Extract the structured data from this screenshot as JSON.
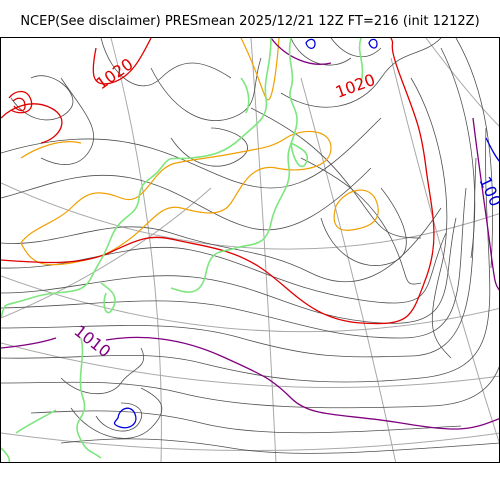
{
  "title": "NCEP(See disclaimer) PRESmean 2025/12/21 12Z FT=216 (init 1212Z)",
  "colors": {
    "isobar_thin": "#505050",
    "isobar_1020": "#e00000",
    "isobar_1010": "#800080",
    "isobar_1000": "#0000dd",
    "isobar_1024": "#f0a000",
    "coastline": "#7ee67e",
    "graticule": "#a8a8a8"
  },
  "contour_labels": [
    {
      "text": "1020",
      "color": "#e00000"
    },
    {
      "text": "1020",
      "color": "#e00000"
    },
    {
      "text": "1010",
      "color": "#800080"
    },
    {
      "text": "100",
      "color": "#0000dd"
    }
  ]
}
